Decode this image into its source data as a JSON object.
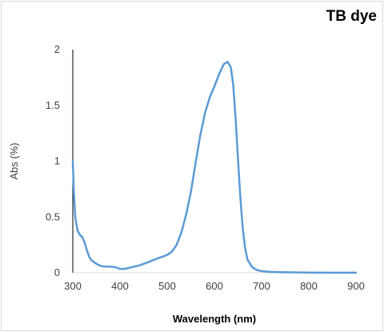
{
  "chart_data": {
    "type": "line",
    "title": "TB dye",
    "xlabel": "Wavelength (nm)",
    "ylabel": "Abs (%)",
    "xlim": [
      300,
      900
    ],
    "ylim": [
      0,
      2
    ],
    "x_ticks": [
      "300",
      "400",
      "500",
      "600",
      "700",
      "800",
      "900"
    ],
    "y_ticks": [
      "0",
      "0.5",
      "1",
      "1.5",
      "2"
    ],
    "grid": false,
    "legend": "none",
    "series": [
      {
        "color": "#5b9bd5",
        "points": [
          [
            300,
            1.0
          ],
          [
            302,
            0.75
          ],
          [
            305,
            0.5
          ],
          [
            310,
            0.38
          ],
          [
            315,
            0.34
          ],
          [
            320,
            0.32
          ],
          [
            325,
            0.27
          ],
          [
            330,
            0.2
          ],
          [
            335,
            0.14
          ],
          [
            340,
            0.11
          ],
          [
            350,
            0.08
          ],
          [
            360,
            0.06
          ],
          [
            370,
            0.055
          ],
          [
            380,
            0.055
          ],
          [
            390,
            0.05
          ],
          [
            400,
            0.035
          ],
          [
            410,
            0.035
          ],
          [
            420,
            0.045
          ],
          [
            440,
            0.065
          ],
          [
            460,
            0.095
          ],
          [
            480,
            0.13
          ],
          [
            500,
            0.16
          ],
          [
            510,
            0.19
          ],
          [
            520,
            0.25
          ],
          [
            530,
            0.36
          ],
          [
            540,
            0.52
          ],
          [
            550,
            0.72
          ],
          [
            560,
            0.98
          ],
          [
            570,
            1.23
          ],
          [
            580,
            1.43
          ],
          [
            590,
            1.57
          ],
          [
            600,
            1.67
          ],
          [
            610,
            1.78
          ],
          [
            620,
            1.87
          ],
          [
            628,
            1.89
          ],
          [
            635,
            1.84
          ],
          [
            640,
            1.68
          ],
          [
            645,
            1.38
          ],
          [
            650,
            1.02
          ],
          [
            655,
            0.68
          ],
          [
            660,
            0.4
          ],
          [
            665,
            0.22
          ],
          [
            670,
            0.12
          ],
          [
            680,
            0.05
          ],
          [
            690,
            0.025
          ],
          [
            700,
            0.015
          ],
          [
            720,
            0.008
          ],
          [
            750,
            0.004
          ],
          [
            800,
            0.002
          ],
          [
            850,
            0.001
          ],
          [
            900,
            0.001
          ]
        ]
      }
    ]
  }
}
